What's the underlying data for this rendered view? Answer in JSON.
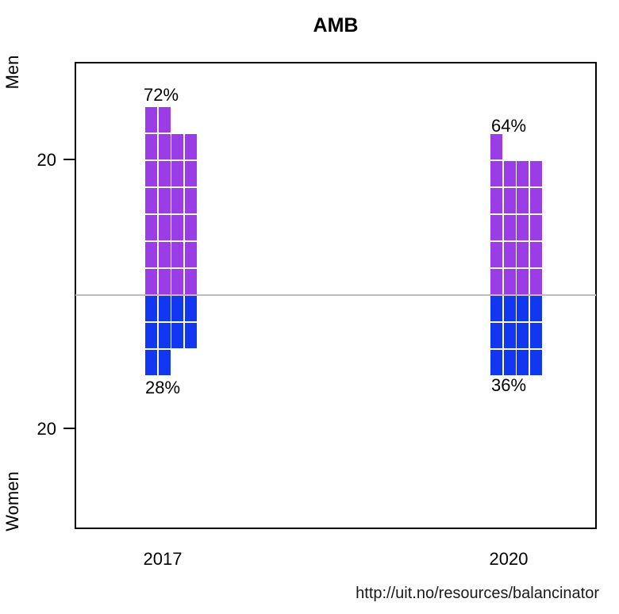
{
  "title": "AMB",
  "footer_url": "http://uit.no/resources/balancinator",
  "y_axis": {
    "top_label": "Men",
    "bottom_label": "Women",
    "top_tick": "20",
    "bottom_tick": "20"
  },
  "chart_data": {
    "type": "bar",
    "subtype": "diverging-waffle",
    "description": "Gender balance waffle chart; each square = 1 person; Men plotted upward above the gray divider line, Women downward below it",
    "categories": [
      "2017",
      "2020"
    ],
    "columns_per_bar": 4,
    "series": [
      {
        "name": "Men",
        "values": [
          26,
          21
        ],
        "percent_labels": [
          "72%",
          "64%"
        ],
        "color": "#9A3DE6"
      },
      {
        "name": "Women",
        "values": [
          10,
          12
        ],
        "percent_labels": [
          "28%",
          "36%"
        ],
        "color": "#1138F0"
      }
    ],
    "totals_per_category": [
      36,
      33
    ],
    "y_ticks_people": [
      20
    ],
    "divider_color": "#BDBDBD",
    "grid": "off",
    "legend": "none"
  }
}
